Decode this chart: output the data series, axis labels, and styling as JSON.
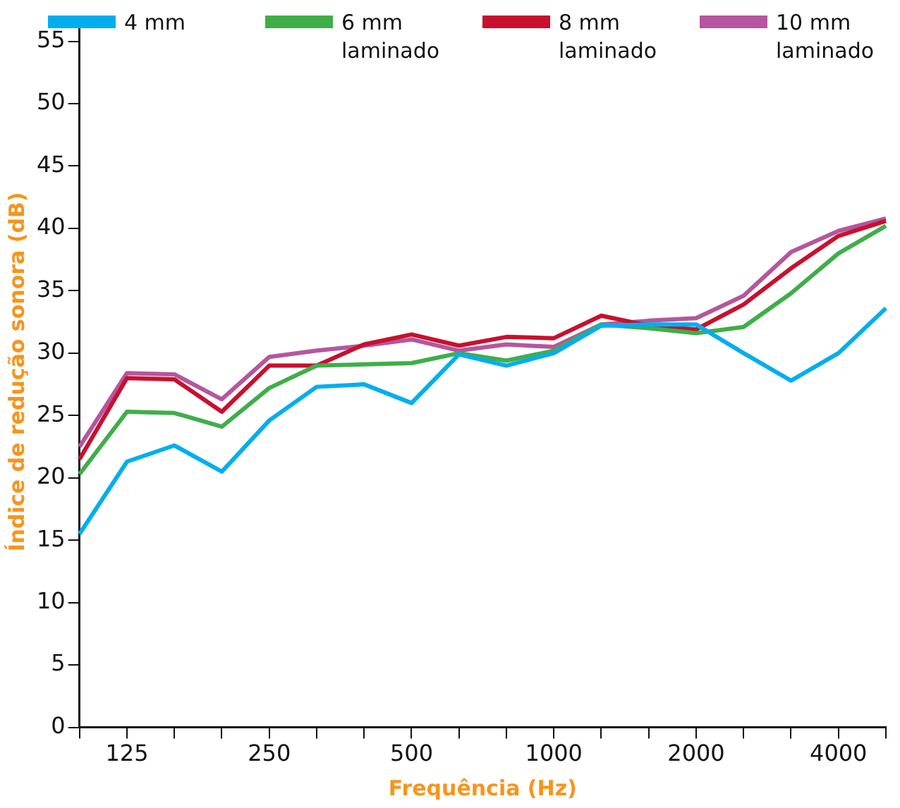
{
  "chart_data": {
    "type": "line",
    "xlabel": "Frequência (Hz)",
    "ylabel": "Índice de redução sonora (dB)",
    "categories": [
      null,
      "125",
      null,
      null,
      "250",
      null,
      null,
      "500",
      null,
      null,
      "1000",
      null,
      null,
      "2000",
      null,
      null,
      "4000",
      null
    ],
    "ylim": [
      0,
      57
    ],
    "yticks": [
      0,
      5,
      10,
      15,
      20,
      25,
      30,
      35,
      40,
      45,
      50,
      55
    ],
    "grid": false,
    "legend": "top right",
    "marker": "none",
    "line_style": "solid",
    "series": [
      {
        "name": "4 mm",
        "color": "#00aeef",
        "values": [
          15.5,
          21.3,
          22.6,
          20.5,
          24.6,
          27.3,
          27.5,
          26.0,
          29.9,
          29.0,
          30.0,
          32.2,
          32.3,
          32.3,
          30.0,
          27.8,
          30.0,
          33.6
        ]
      },
      {
        "name": "6 mm laminado",
        "color": "#3fae49",
        "values": [
          20.3,
          25.3,
          25.2,
          24.1,
          27.2,
          29.0,
          29.1,
          29.2,
          30.0,
          29.4,
          30.2,
          32.3,
          32.0,
          31.6,
          32.1,
          34.8,
          38.0,
          40.2
        ]
      },
      {
        "name": "8 mm laminado",
        "color": "#c8102e",
        "values": [
          21.5,
          28.0,
          27.9,
          25.3,
          29.0,
          29.0,
          30.7,
          31.5,
          30.6,
          31.3,
          31.2,
          33.0,
          32.2,
          31.9,
          33.9,
          36.8,
          39.4,
          40.6
        ]
      },
      {
        "name": "10 mm laminado",
        "color": "#b5569e",
        "values": [
          22.5,
          28.4,
          28.3,
          26.3,
          29.7,
          30.2,
          30.6,
          31.1,
          30.2,
          30.7,
          30.5,
          32.3,
          32.6,
          32.8,
          34.6,
          38.1,
          39.8,
          40.8
        ]
      }
    ]
  }
}
